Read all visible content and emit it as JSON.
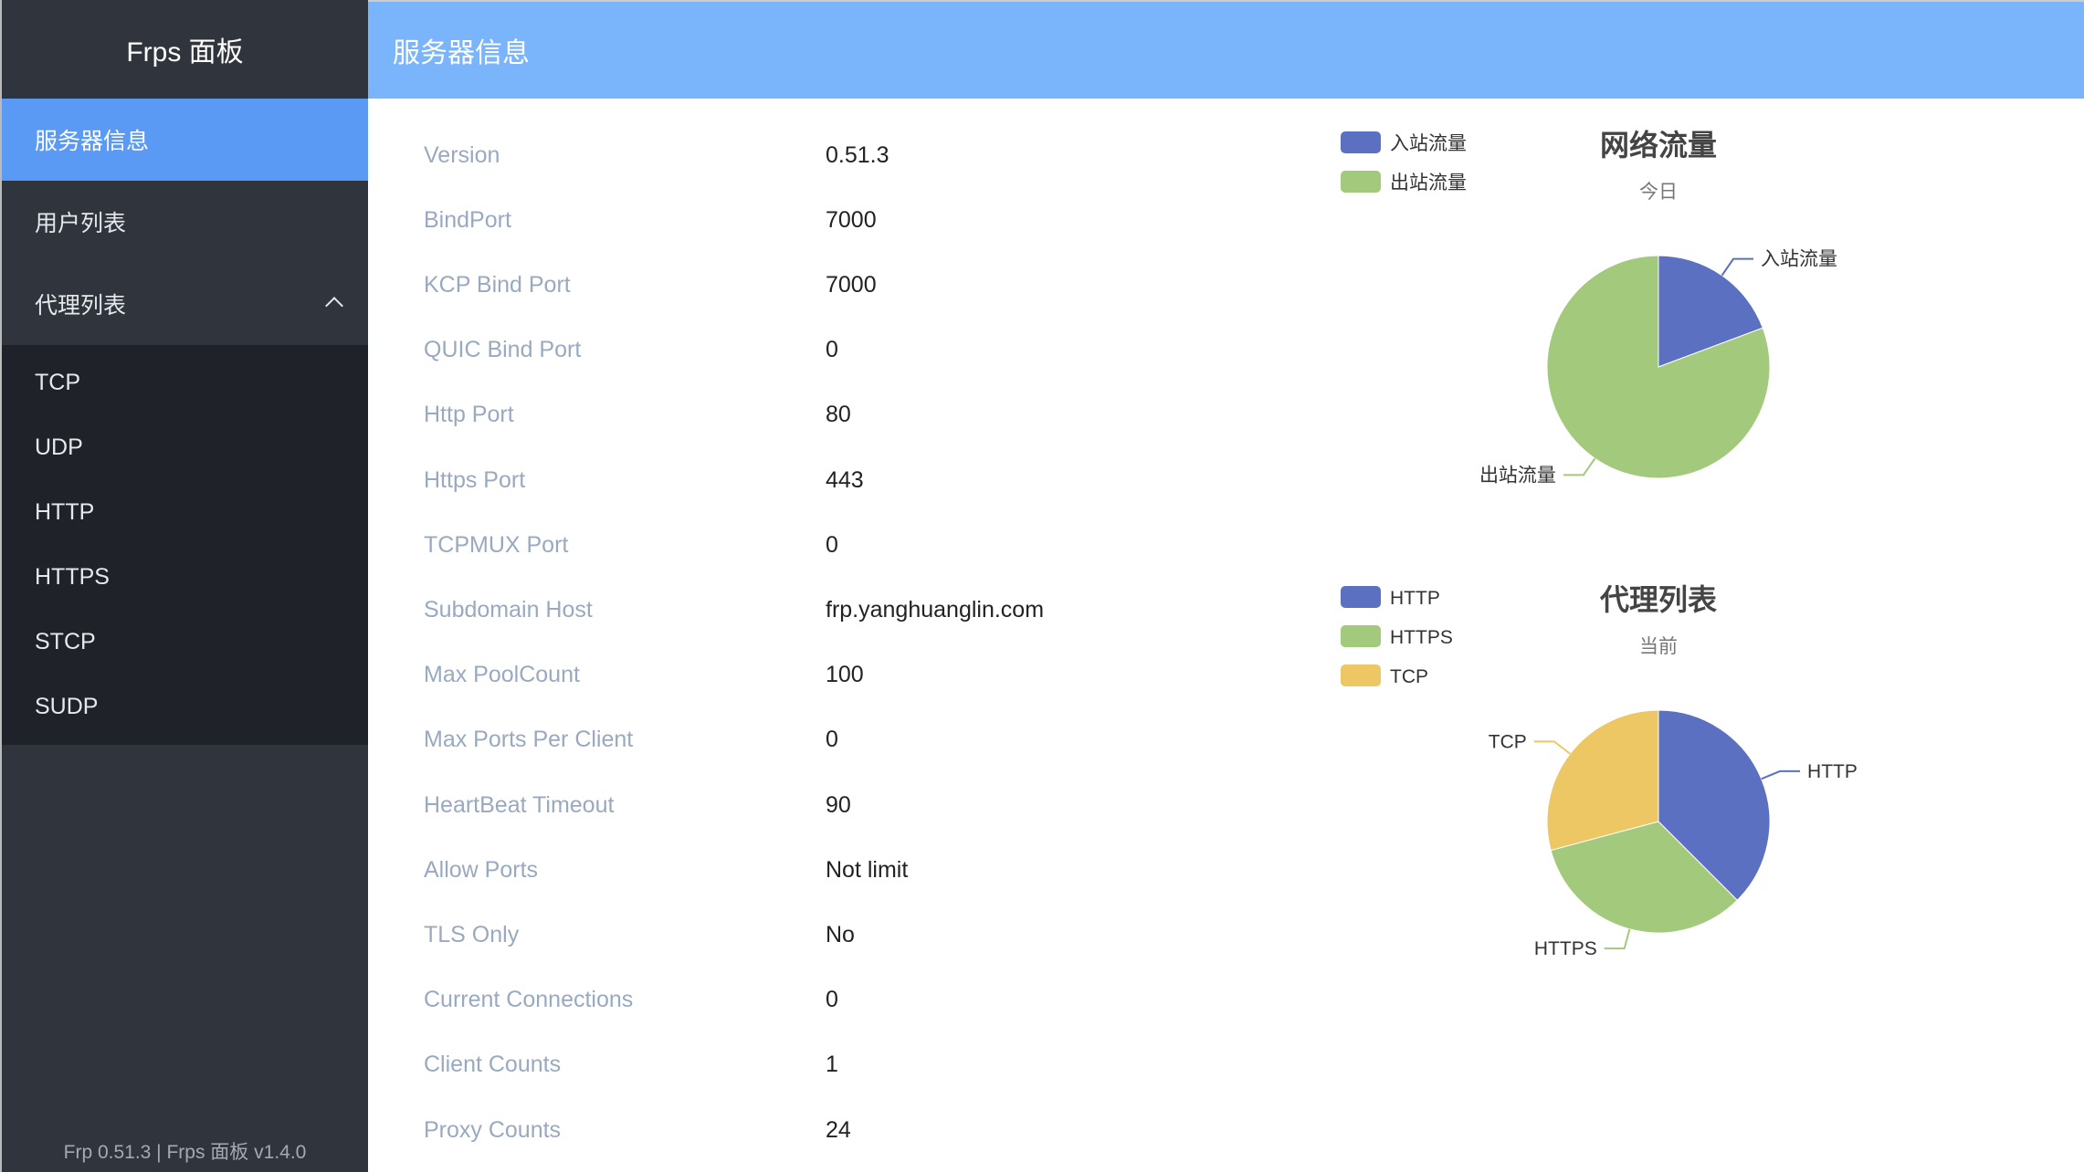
{
  "sidebar": {
    "brand": "Frps 面板",
    "items": [
      {
        "label": "服务器信息",
        "active": true
      },
      {
        "label": "用户列表"
      },
      {
        "label": "代理列表",
        "expanded": true
      }
    ],
    "sub_items": [
      "TCP",
      "UDP",
      "HTTP",
      "HTTPS",
      "STCP",
      "SUDP"
    ],
    "footer": "Frp 0.51.3 | Frps 面板 v1.4.0"
  },
  "header": {
    "title": "服务器信息"
  },
  "info": [
    {
      "label": "Version",
      "value": "0.51.3"
    },
    {
      "label": "BindPort",
      "value": "7000"
    },
    {
      "label": "KCP Bind Port",
      "value": "7000"
    },
    {
      "label": "QUIC Bind Port",
      "value": "0"
    },
    {
      "label": "Http Port",
      "value": "80"
    },
    {
      "label": "Https Port",
      "value": "443"
    },
    {
      "label": "TCPMUX Port",
      "value": "0"
    },
    {
      "label": "Subdomain Host",
      "value": "frp.yanghuanglin.com"
    },
    {
      "label": "Max PoolCount",
      "value": "100"
    },
    {
      "label": "Max Ports Per Client",
      "value": "0"
    },
    {
      "label": "HeartBeat Timeout",
      "value": "90"
    },
    {
      "label": "Allow Ports",
      "value": "Not limit"
    },
    {
      "label": "TLS Only",
      "value": "No"
    },
    {
      "label": "Current Connections",
      "value": "0"
    },
    {
      "label": "Client Counts",
      "value": "1"
    },
    {
      "label": "Proxy Counts",
      "value": "24"
    }
  ],
  "chart_data": [
    {
      "type": "pie",
      "title": "网络流量",
      "subtitle": "今日",
      "legend": "top-left",
      "slices": [
        {
          "name": "入站流量",
          "value": 19.3,
          "color": "#5b70c0"
        },
        {
          "name": "出站流量",
          "value": 80.7,
          "color": "#a2c97c"
        }
      ]
    },
    {
      "type": "pie",
      "title": "代理列表",
      "subtitle": "当前",
      "legend": "top-left",
      "slices": [
        {
          "name": "HTTP",
          "value": 9,
          "color": "#5b70c0"
        },
        {
          "name": "HTTPS",
          "value": 8,
          "color": "#a2c97c"
        },
        {
          "name": "TCP",
          "value": 7,
          "color": "#eec765"
        }
      ]
    }
  ]
}
